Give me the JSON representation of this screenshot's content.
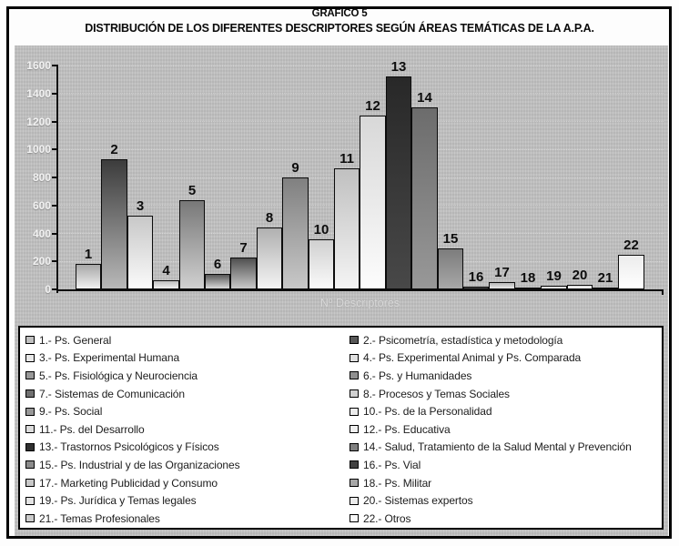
{
  "title": {
    "line1": "GRÁFICO 5",
    "line2": "DISTRIBUCIÓN DE LOS DIFERENTES DESCRIPTORES SEGÚN ÁREAS TEMÁTICAS DE LA A.P.A."
  },
  "chart_data": {
    "type": "bar",
    "title": "GRÁFICO 5 — DISTRIBUCIÓN DE LOS DIFERENTES DESCRIPTORES SEGÚN ÁREAS TEMÁTICAS DE LA A.P.A.",
    "xlabel": "Nº Descriptores",
    "ylabel": "",
    "ylim": [
      0,
      1600
    ],
    "yticks": [
      0,
      200,
      400,
      600,
      800,
      1000,
      1200,
      1400,
      1600
    ],
    "grid": "faint dotted horizontal",
    "legend_position": "bottom",
    "legend_columns": 2,
    "categories": [
      "1",
      "2",
      "3",
      "4",
      "5",
      "6",
      "7",
      "8",
      "9",
      "10",
      "11",
      "12",
      "13",
      "14",
      "15",
      "16",
      "17",
      "18",
      "19",
      "20",
      "21",
      "22"
    ],
    "series": [
      {
        "num": "1",
        "label": "1.- Ps. General",
        "value": 180,
        "color": "#c0c0c0",
        "bar_top": "#a8a8a8",
        "bar_bottom": "#f0f0f0"
      },
      {
        "num": "2",
        "label": "2.- Psicometría, estadística y metodología",
        "value": 930,
        "color": "#585858",
        "bar_top": "#3c3c3c",
        "bar_bottom": "#b8b8b8"
      },
      {
        "num": "3",
        "label": "3.- Ps. Experimental Humana",
        "value": 530,
        "color": "#e8e8e8",
        "bar_top": "#c8c8c8",
        "bar_bottom": "#fafafa"
      },
      {
        "num": "4",
        "label": "4.- Ps. Experimental Animal y Ps. Comparada",
        "value": 65,
        "color": "#e0e0e0",
        "bar_top": "#c0c0c0",
        "bar_bottom": "#f0f0f0"
      },
      {
        "num": "5",
        "label": "5.- Ps. Fisiológica y Neurociencia",
        "value": 635,
        "color": "#989898",
        "bar_top": "#787878",
        "bar_bottom": "#d0d0d0"
      },
      {
        "num": "6",
        "label": "6.- Ps. y Humanidades",
        "value": 110,
        "color": "#909090",
        "bar_top": "#585858",
        "bar_bottom": "#d8d8d8"
      },
      {
        "num": "7",
        "label": "7.- Sistemas de Comunicación",
        "value": 225,
        "color": "#707070",
        "bar_top": "#505050",
        "bar_bottom": "#c8c8c8"
      },
      {
        "num": "8",
        "label": "8.- Procesos y Temas Sociales",
        "value": 440,
        "color": "#d0d0d0",
        "bar_top": "#b0b0b0",
        "bar_bottom": "#f4f4f4"
      },
      {
        "num": "9",
        "label": "9.- Ps. Social",
        "value": 800,
        "color": "#989898",
        "bar_top": "#808080",
        "bar_bottom": "#c8c8c8"
      },
      {
        "num": "10",
        "label": "10.- Ps. de la Personalidad",
        "value": 355,
        "color": "#ececec",
        "bar_top": "#d0d0d0",
        "bar_bottom": "#fafafa"
      },
      {
        "num": "11",
        "label": "11.- Ps. del Desarrollo",
        "value": 865,
        "color": "#dcdcdc",
        "bar_top": "#c0c0c0",
        "bar_bottom": "#f4f4f4"
      },
      {
        "num": "12",
        "label": "12.- Ps. Educativa",
        "value": 1240,
        "color": "#f0f0f0",
        "bar_top": "#d8d8d8",
        "bar_bottom": "#fcfcfc"
      },
      {
        "num": "13",
        "label": "13.- Trastornos Psicológicos y Físicos",
        "value": 1520,
        "color": "#303030",
        "bar_top": "#282828",
        "bar_bottom": "#484848"
      },
      {
        "num": "14",
        "label": "14.- Salud, Tratamiento de la Salud Mental y Prevención",
        "value": 1300,
        "color": "#808080",
        "bar_top": "#6c6c6c",
        "bar_bottom": "#989898"
      },
      {
        "num": "15",
        "label": "15.- Ps. Industrial y de las Organizaciones",
        "value": 295,
        "color": "#8c8c8c",
        "bar_top": "#7c7c7c",
        "bar_bottom": "#a8a8a8"
      },
      {
        "num": "16",
        "label": "16.- Ps. Vial",
        "value": 20,
        "color": "#404040",
        "bar_top": "#383838",
        "bar_bottom": "#585858"
      },
      {
        "num": "17",
        "label": "17.- Marketing Publicidad y Consumo",
        "value": 50,
        "color": "#c8c8c8",
        "bar_top": "#b8b8b8",
        "bar_bottom": "#e8e8e8"
      },
      {
        "num": "18",
        "label": "18.- Ps. Militar",
        "value": 10,
        "color": "#a8a8a8",
        "bar_top": "#989898",
        "bar_bottom": "#c0c0c0"
      },
      {
        "num": "19",
        "label": "19.- Ps. Jurídica y Temas legales",
        "value": 25,
        "color": "#e4e4e4",
        "bar_top": "#d0d0d0",
        "bar_bottom": "#f0f0f0"
      },
      {
        "num": "20",
        "label": "20.- Sistemas expertos",
        "value": 30,
        "color": "#ececec",
        "bar_top": "#d8d8d8",
        "bar_bottom": "#f8f8f8"
      },
      {
        "num": "21",
        "label": "21.- Temas Profesionales",
        "value": 10,
        "color": "#cccccc",
        "bar_top": "#b8b8b8",
        "bar_bottom": "#e0e0e0"
      },
      {
        "num": "22",
        "label": "22.- Otros",
        "value": 245,
        "color": "#f8f8f8",
        "bar_top": "#ececec",
        "bar_bottom": "#ffffff"
      }
    ]
  },
  "colors": {
    "panel_bg": "#c3c3c3",
    "axis": "#0c0c0c",
    "ytick_label": "#f2f2f2",
    "bar_label": "#0d0d0d",
    "xlabel_text": "#dadada",
    "legend_bg": "#ffffff",
    "legend_border": "#000000",
    "frame": "#000000"
  }
}
